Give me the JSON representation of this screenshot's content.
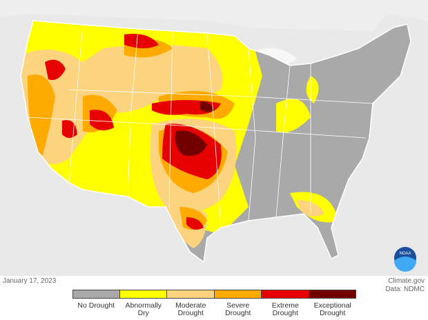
{
  "map": {
    "date": "January 17, 2023",
    "credit": "Climate.gov",
    "source": "Data: NDMC",
    "logo": "NOAA",
    "legend": [
      {
        "label": "No Drought",
        "color": "#a9a9a9"
      },
      {
        "label": "Abnormally Dry",
        "color": "#ffff00"
      },
      {
        "label": "Moderate Drought",
        "color": "#fcd37f"
      },
      {
        "label": "Severe Drought",
        "color": "#ffaa00"
      },
      {
        "label": "Extreme Drought",
        "color": "#e60000"
      },
      {
        "label": "Exceptional Drought",
        "color": "#730000"
      }
    ]
  }
}
